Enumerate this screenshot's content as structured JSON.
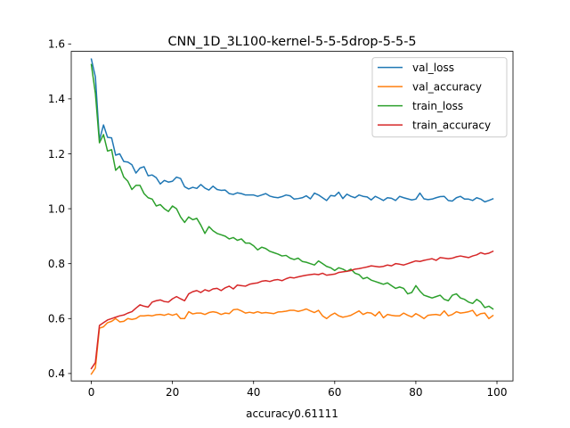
{
  "chart_data": {
    "type": "line",
    "title": "CNN_1D_3L100-kernel-5-5-5drop-5-5-5",
    "xlabel": "accuracy0.61111",
    "ylabel": "",
    "xlim": [
      -4.95,
      103.95
    ],
    "ylim": [
      0.373,
      1.573
    ],
    "xticks": [
      0,
      20,
      40,
      60,
      80,
      100
    ],
    "yticks": [
      0.4,
      0.6,
      0.8,
      1.0,
      1.2,
      1.4,
      1.6
    ],
    "xtick_labels": [
      "0",
      "20",
      "40",
      "60",
      "80",
      "100"
    ],
    "ytick_labels": [
      "0.4",
      "0.6",
      "0.8",
      "1.0",
      "1.2",
      "1.4",
      "1.6"
    ],
    "grid": false,
    "legend_position": "top-right",
    "x": [
      0,
      1,
      2,
      3,
      4,
      5,
      6,
      7,
      8,
      9,
      10,
      11,
      12,
      13,
      14,
      15,
      16,
      17,
      18,
      19,
      20,
      21,
      22,
      23,
      24,
      25,
      26,
      27,
      28,
      29,
      30,
      31,
      32,
      33,
      34,
      35,
      36,
      37,
      38,
      39,
      40,
      41,
      42,
      43,
      44,
      45,
      46,
      47,
      48,
      49,
      50,
      51,
      52,
      53,
      54,
      55,
      56,
      57,
      58,
      59,
      60,
      61,
      62,
      63,
      64,
      65,
      66,
      67,
      68,
      69,
      70,
      71,
      72,
      73,
      74,
      75,
      76,
      77,
      78,
      79,
      80,
      81,
      82,
      83,
      84,
      85,
      86,
      87,
      88,
      89,
      90,
      91,
      92,
      93,
      94,
      95,
      96,
      97,
      98,
      99
    ],
    "series": [
      {
        "name": "val_loss",
        "color": "#1f77b4",
        "values": [
          1.545,
          1.48,
          1.25,
          1.305,
          1.26,
          1.258,
          1.195,
          1.2,
          1.172,
          1.17,
          1.16,
          1.13,
          1.148,
          1.153,
          1.12,
          1.123,
          1.113,
          1.09,
          1.103,
          1.097,
          1.1,
          1.115,
          1.11,
          1.08,
          1.072,
          1.078,
          1.074,
          1.088,
          1.075,
          1.068,
          1.082,
          1.07,
          1.067,
          1.068,
          1.055,
          1.052,
          1.058,
          1.055,
          1.05,
          1.05,
          1.05,
          1.045,
          1.05,
          1.055,
          1.046,
          1.042,
          1.04,
          1.044,
          1.05,
          1.047,
          1.035,
          1.037,
          1.04,
          1.047,
          1.036,
          1.057,
          1.05,
          1.04,
          1.03,
          1.048,
          1.046,
          1.06,
          1.037,
          1.053,
          1.045,
          1.04,
          1.05,
          1.045,
          1.043,
          1.032,
          1.045,
          1.038,
          1.03,
          1.04,
          1.038,
          1.03,
          1.045,
          1.04,
          1.036,
          1.032,
          1.035,
          1.057,
          1.036,
          1.033,
          1.035,
          1.04,
          1.044,
          1.045,
          1.03,
          1.028,
          1.04,
          1.045,
          1.035,
          1.035,
          1.03,
          1.04,
          1.035,
          1.025,
          1.03,
          1.036
        ]
      },
      {
        "name": "val_accuracy",
        "color": "#ff7f0e",
        "values": [
          0.398,
          0.42,
          0.565,
          0.57,
          0.585,
          0.59,
          0.6,
          0.588,
          0.59,
          0.6,
          0.597,
          0.6,
          0.61,
          0.61,
          0.612,
          0.61,
          0.614,
          0.615,
          0.612,
          0.617,
          0.612,
          0.617,
          0.6,
          0.6,
          0.625,
          0.617,
          0.62,
          0.62,
          0.615,
          0.622,
          0.625,
          0.622,
          0.615,
          0.62,
          0.618,
          0.632,
          0.634,
          0.628,
          0.62,
          0.623,
          0.62,
          0.625,
          0.62,
          0.622,
          0.62,
          0.618,
          0.624,
          0.625,
          0.627,
          0.63,
          0.63,
          0.626,
          0.63,
          0.635,
          0.628,
          0.622,
          0.63,
          0.61,
          0.6,
          0.612,
          0.62,
          0.61,
          0.605,
          0.608,
          0.612,
          0.62,
          0.628,
          0.615,
          0.622,
          0.62,
          0.61,
          0.625,
          0.603,
          0.615,
          0.612,
          0.61,
          0.61,
          0.62,
          0.612,
          0.606,
          0.618,
          0.61,
          0.6,
          0.612,
          0.614,
          0.615,
          0.612,
          0.628,
          0.61,
          0.615,
          0.625,
          0.62,
          0.622,
          0.625,
          0.63,
          0.61,
          0.618,
          0.62,
          0.6,
          0.611
        ]
      },
      {
        "name": "train_loss",
        "color": "#2ca02c",
        "values": [
          1.525,
          1.42,
          1.24,
          1.27,
          1.21,
          1.215,
          1.14,
          1.155,
          1.115,
          1.1,
          1.07,
          1.085,
          1.085,
          1.055,
          1.04,
          1.035,
          1.01,
          1.015,
          1.0,
          0.99,
          1.01,
          1.0,
          0.97,
          0.95,
          0.97,
          0.96,
          0.965,
          0.94,
          0.91,
          0.935,
          0.92,
          0.91,
          0.905,
          0.9,
          0.89,
          0.895,
          0.885,
          0.89,
          0.875,
          0.875,
          0.865,
          0.85,
          0.86,
          0.855,
          0.845,
          0.84,
          0.835,
          0.828,
          0.83,
          0.82,
          0.815,
          0.82,
          0.808,
          0.805,
          0.8,
          0.795,
          0.81,
          0.8,
          0.79,
          0.785,
          0.775,
          0.785,
          0.78,
          0.772,
          0.78,
          0.765,
          0.76,
          0.745,
          0.75,
          0.74,
          0.735,
          0.73,
          0.725,
          0.73,
          0.72,
          0.71,
          0.715,
          0.71,
          0.69,
          0.695,
          0.72,
          0.7,
          0.685,
          0.68,
          0.675,
          0.68,
          0.685,
          0.67,
          0.665,
          0.685,
          0.69,
          0.675,
          0.67,
          0.66,
          0.655,
          0.67,
          0.66,
          0.64,
          0.645,
          0.635
        ]
      },
      {
        "name": "train_accuracy",
        "color": "#d62728",
        "values": [
          0.418,
          0.44,
          0.575,
          0.585,
          0.595,
          0.6,
          0.605,
          0.61,
          0.613,
          0.62,
          0.625,
          0.638,
          0.65,
          0.645,
          0.642,
          0.66,
          0.665,
          0.668,
          0.662,
          0.66,
          0.672,
          0.68,
          0.672,
          0.665,
          0.69,
          0.698,
          0.702,
          0.695,
          0.705,
          0.7,
          0.708,
          0.71,
          0.702,
          0.712,
          0.718,
          0.708,
          0.722,
          0.72,
          0.718,
          0.725,
          0.728,
          0.73,
          0.736,
          0.738,
          0.735,
          0.74,
          0.742,
          0.738,
          0.745,
          0.75,
          0.748,
          0.752,
          0.755,
          0.758,
          0.76,
          0.762,
          0.76,
          0.765,
          0.758,
          0.76,
          0.762,
          0.768,
          0.77,
          0.772,
          0.775,
          0.78,
          0.782,
          0.785,
          0.788,
          0.792,
          0.79,
          0.788,
          0.79,
          0.795,
          0.792,
          0.8,
          0.798,
          0.795,
          0.8,
          0.805,
          0.81,
          0.808,
          0.812,
          0.815,
          0.818,
          0.812,
          0.822,
          0.82,
          0.818,
          0.82,
          0.825,
          0.828,
          0.825,
          0.822,
          0.828,
          0.832,
          0.84,
          0.835,
          0.838,
          0.845
        ]
      }
    ]
  }
}
